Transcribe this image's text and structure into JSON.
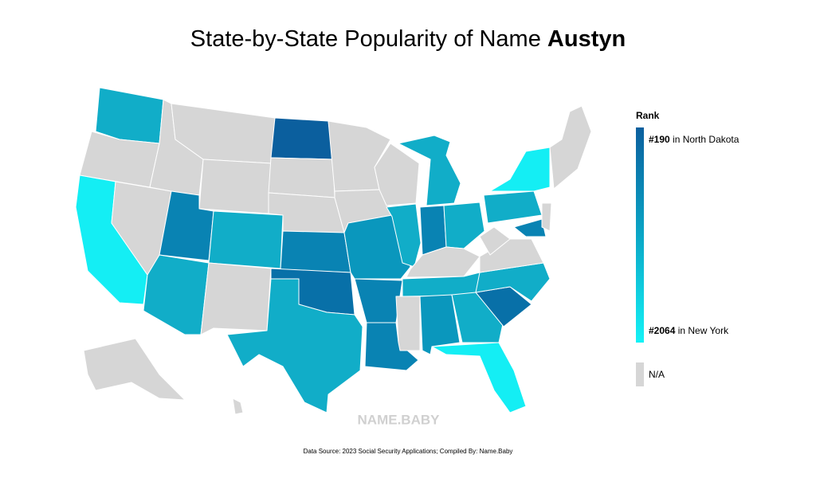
{
  "header": {
    "title": "State-by-State Popularity of Name",
    "name": "Austyn"
  },
  "legend": {
    "title": "Rank",
    "top": {
      "rank": "#190",
      "place": "in North Dakota"
    },
    "bottom": {
      "rank": "#2064",
      "place": "in New York"
    },
    "na_label": "N/A"
  },
  "watermark": "NAME.BABY",
  "source": "Data Source: 2023 Social Security Applications; Compiled By: Name.Baby"
}
